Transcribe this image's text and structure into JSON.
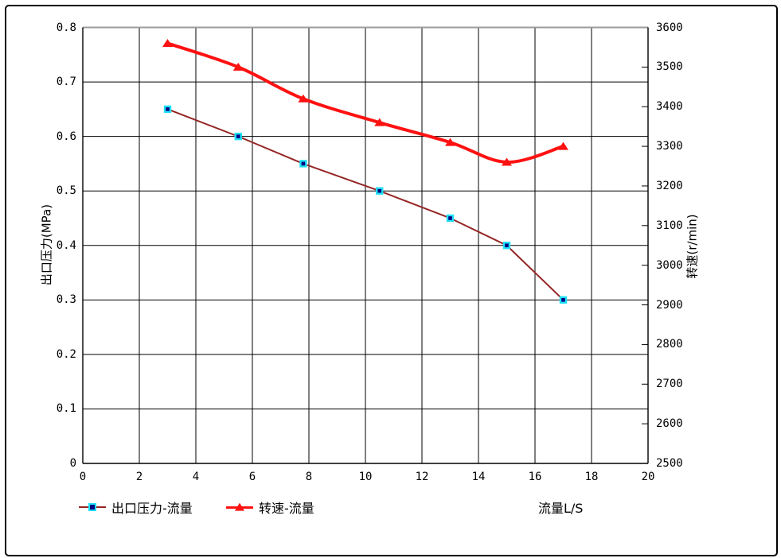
{
  "chart_data": {
    "type": "line",
    "title": "",
    "xlabel": "流量L/S",
    "ylabel_left": "出口压力(MPa)",
    "ylabel_right": "转速(r/min)",
    "grid": true,
    "legend_position": "bottom-left",
    "x_axis": {
      "min": 0,
      "max": 20,
      "tick_step": 2,
      "tick_labels": [
        "0",
        "2",
        "4",
        "6",
        "8",
        "10",
        "12",
        "14",
        "16",
        "18",
        "20"
      ]
    },
    "y_left_axis": {
      "min": 0,
      "max": 0.8,
      "tick_step": 0.1,
      "tick_labels": [
        "0",
        "0.1",
        "0.2",
        "0.3",
        "0.4",
        "0.5",
        "0.6",
        "0.7",
        "0.8"
      ]
    },
    "y_right_axis": {
      "min": 2500,
      "max": 3600,
      "tick_step": 100,
      "tick_labels": [
        "2500",
        "2600",
        "2700",
        "2800",
        "2900",
        "3000",
        "3100",
        "3200",
        "3300",
        "3400",
        "3500",
        "3600"
      ]
    },
    "series": [
      {
        "name": "出口压力-流量",
        "axis": "left",
        "x": [
          3,
          5.5,
          7.8,
          10.5,
          13,
          15,
          17
        ],
        "y": [
          0.65,
          0.6,
          0.55,
          0.5,
          0.45,
          0.4,
          0.3
        ],
        "color": "#952525",
        "line_width": 2,
        "smooth": false,
        "marker": "square",
        "marker_fill": "#000080",
        "marker_border": "#20e0f5"
      },
      {
        "name": "转速-流量",
        "axis": "right",
        "x": [
          3,
          5.5,
          7.8,
          10.5,
          13,
          15,
          17
        ],
        "y": [
          3560,
          3500,
          3420,
          3360,
          3310,
          3260,
          3300
        ],
        "color": "#ff1111",
        "line_width": 4,
        "smooth": true,
        "marker": "triangle",
        "marker_fill": "#ff1111",
        "marker_border": "#ff1111"
      }
    ],
    "colors": {
      "background": "#ffffff",
      "outer_border": "#000000",
      "grid": "#000000",
      "plot_top_border": "#9b9b9b"
    }
  }
}
